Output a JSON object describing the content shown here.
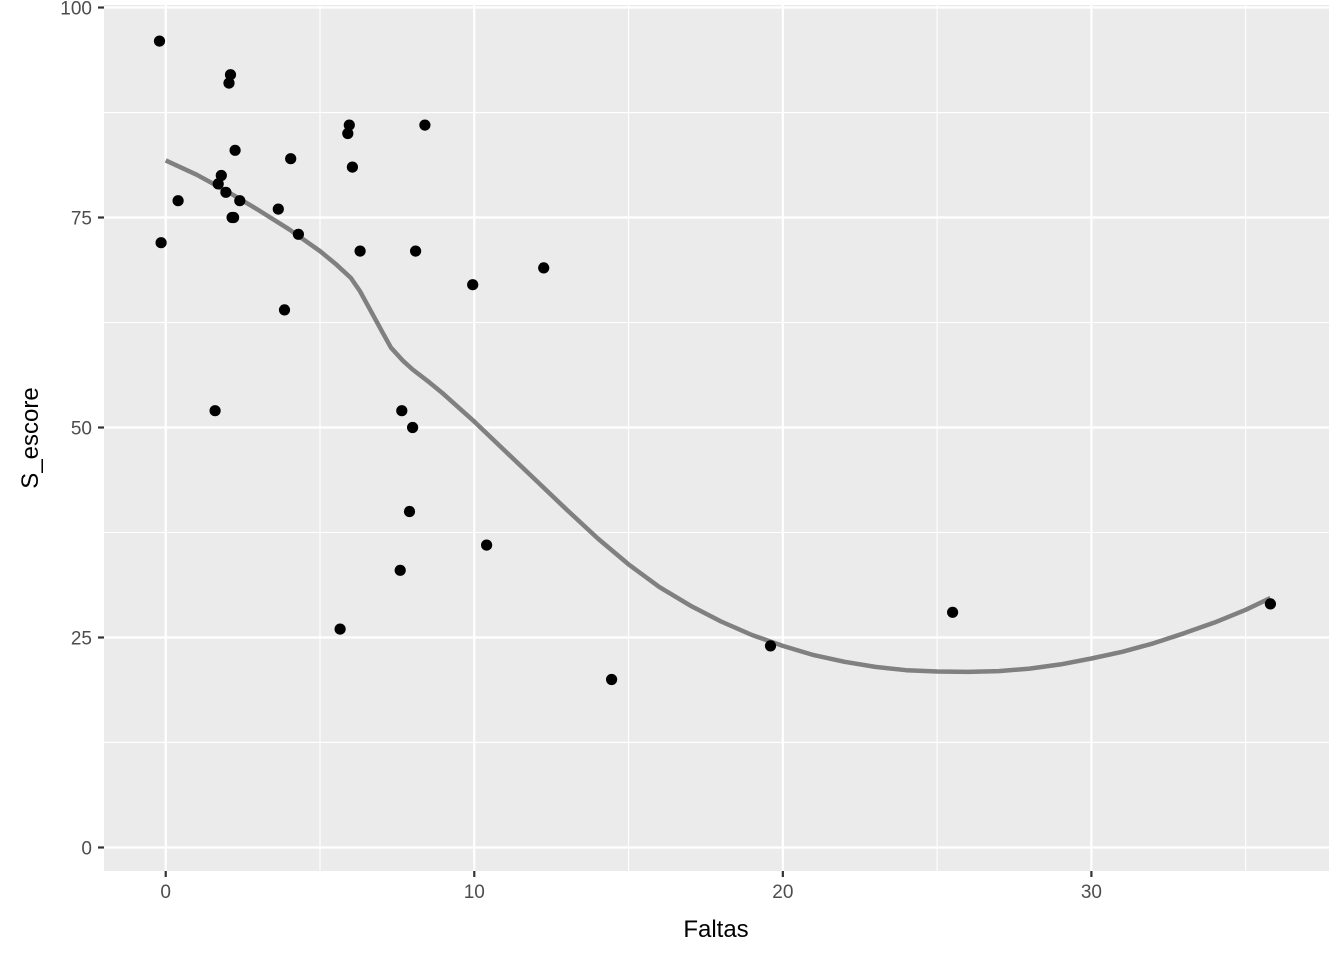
{
  "chart_data": {
    "type": "scatter",
    "xlabel": "Faltas",
    "ylabel": "S_escore",
    "xlim": [
      -2,
      37.7
    ],
    "ylim": [
      -2.8,
      100.3
    ],
    "x_ticks": [
      0,
      10,
      20,
      30
    ],
    "x_minor_ticks": [
      5,
      15,
      25,
      35
    ],
    "y_ticks": [
      0,
      25,
      50,
      75,
      100
    ],
    "y_minor_ticks": [
      12.5,
      37.5,
      62.5,
      87.5
    ],
    "x_tick_labels": [
      "0",
      "10",
      "20",
      "30"
    ],
    "y_tick_labels": [
      "0",
      "25",
      "50",
      "75",
      "100"
    ],
    "grid": true,
    "colors": {
      "panel": "#ebebeb",
      "grid": "#ffffff",
      "points": "#000000",
      "smooth_line": "#808080"
    },
    "points": [
      {
        "x": -0.2,
        "y": 96
      },
      {
        "x": -0.15,
        "y": 72
      },
      {
        "x": 0.4,
        "y": 77
      },
      {
        "x": 1.6,
        "y": 52
      },
      {
        "x": 1.7,
        "y": 79
      },
      {
        "x": 1.8,
        "y": 80
      },
      {
        "x": 1.95,
        "y": 78
      },
      {
        "x": 2.05,
        "y": 91
      },
      {
        "x": 2.1,
        "y": 92
      },
      {
        "x": 2.15,
        "y": 75
      },
      {
        "x": 2.2,
        "y": 75
      },
      {
        "x": 2.25,
        "y": 83
      },
      {
        "x": 2.4,
        "y": 77
      },
      {
        "x": 3.65,
        "y": 76
      },
      {
        "x": 3.85,
        "y": 64
      },
      {
        "x": 4.05,
        "y": 82
      },
      {
        "x": 4.3,
        "y": 73
      },
      {
        "x": 5.65,
        "y": 26
      },
      {
        "x": 5.9,
        "y": 85
      },
      {
        "x": 5.95,
        "y": 86
      },
      {
        "x": 6.05,
        "y": 81
      },
      {
        "x": 6.3,
        "y": 71
      },
      {
        "x": 7.6,
        "y": 33
      },
      {
        "x": 7.65,
        "y": 52
      },
      {
        "x": 7.9,
        "y": 40
      },
      {
        "x": 8.0,
        "y": 50
      },
      {
        "x": 8.1,
        "y": 71
      },
      {
        "x": 8.4,
        "y": 86
      },
      {
        "x": 9.95,
        "y": 67
      },
      {
        "x": 10.4,
        "y": 36
      },
      {
        "x": 12.25,
        "y": 69
      },
      {
        "x": 14.45,
        "y": 20
      },
      {
        "x": 19.6,
        "y": 24
      },
      {
        "x": 25.5,
        "y": 28
      },
      {
        "x": 35.8,
        "y": 29
      }
    ],
    "smooth_line": {
      "x": [
        0,
        1,
        2,
        3,
        4,
        5,
        5.5,
        6,
        6.3,
        6.7,
        7,
        7.3,
        7.7,
        8,
        8.5,
        9,
        10,
        11,
        12,
        13,
        14,
        15,
        16,
        17,
        18,
        19,
        20,
        21,
        22,
        23,
        24,
        25,
        26,
        27,
        28,
        29,
        30,
        31,
        32,
        33,
        34,
        35,
        35.8
      ],
      "y": [
        81.8,
        80.1,
        78.1,
        75.9,
        73.6,
        71,
        69.5,
        67.8,
        66.2,
        63.5,
        61.5,
        59.5,
        57.9,
        56.9,
        55.5,
        54,
        50.7,
        47.2,
        43.7,
        40.2,
        36.8,
        33.7,
        31,
        28.8,
        26.9,
        25.3,
        24,
        22.9,
        22.1,
        21.5,
        21.1,
        20.95,
        20.9,
        21,
        21.3,
        21.8,
        22.5,
        23.3,
        24.3,
        25.5,
        26.8,
        28.3,
        29.7
      ]
    }
  }
}
